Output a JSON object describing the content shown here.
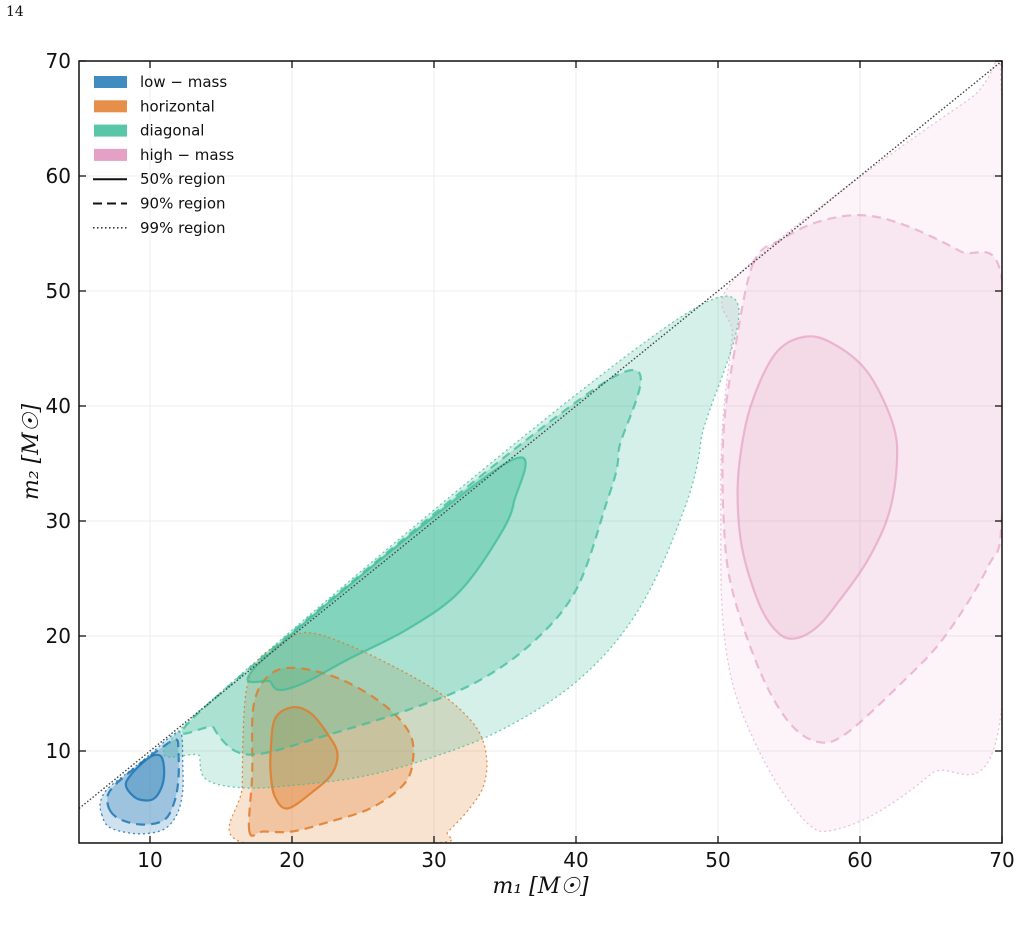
{
  "page_number": "14",
  "chart_data": {
    "type": "contour",
    "xlabel": "m₁ [M☉]",
    "ylabel": "m₂ [M☉]",
    "xlim": [
      5,
      70
    ],
    "ylim": [
      2,
      70
    ],
    "xticks": [
      10,
      20,
      30,
      40,
      50,
      60,
      70
    ],
    "yticks": [
      10,
      20,
      30,
      40,
      50,
      60,
      70
    ],
    "grid": true,
    "legend_position": "top-left",
    "diagonal_line": {
      "x": [
        5,
        70
      ],
      "y": [
        5,
        70
      ],
      "style": "dotted"
    },
    "series": [
      {
        "name": "low − mass",
        "color": "#1f77b4",
        "regions": {
          "99": [
            [
              6.6,
              4.5
            ],
            [
              7,
              3.5
            ],
            [
              8,
              3.0
            ],
            [
              9.5,
              2.8
            ],
            [
              11,
              3.2
            ],
            [
              11.9,
              4.5
            ],
            [
              12.3,
              6.5
            ],
            [
              12.3,
              9
            ],
            [
              12.2,
              11.5
            ],
            [
              11.5,
              11.3
            ],
            [
              10,
              9.7
            ],
            [
              8.5,
              8.2
            ],
            [
              7,
              6.7
            ],
            [
              6.5,
              5.5
            ]
          ],
          "90": [
            [
              7.2,
              4.8
            ],
            [
              8,
              4.0
            ],
            [
              9.5,
              3.6
            ],
            [
              11,
              4.0
            ],
            [
              11.7,
              5.5
            ],
            [
              12.0,
              7.5
            ],
            [
              12.0,
              10
            ],
            [
              11.8,
              11
            ],
            [
              10.5,
              10
            ],
            [
              9,
              8.6
            ],
            [
              7.5,
              7.0
            ],
            [
              7.0,
              6.0
            ]
          ],
          "50": [
            [
              8.5,
              6.5
            ],
            [
              9.2,
              5.8
            ],
            [
              10.2,
              5.8
            ],
            [
              10.8,
              6.8
            ],
            [
              11,
              8.2
            ],
            [
              10.8,
              9.5
            ],
            [
              10.2,
              9.6
            ],
            [
              9.5,
              9
            ],
            [
              8.7,
              8.0
            ],
            [
              8.3,
              7.2
            ]
          ]
        }
      },
      {
        "name": "horizontal",
        "color": "#e07b2a",
        "regions": {
          "99": [
            [
              16.6,
              2
            ],
            [
              16.5,
              7
            ],
            [
              16.7,
              14.5
            ],
            [
              17.5,
              17.7
            ],
            [
              19,
              19.2
            ],
            [
              21,
              20.3
            ],
            [
              24,
              19.2
            ],
            [
              28,
              16.8
            ],
            [
              31,
              14.5
            ],
            [
              33,
              12
            ],
            [
              33.7,
              9.5
            ],
            [
              33.5,
              7
            ],
            [
              32.5,
              5
            ],
            [
              31,
              3
            ],
            [
              30,
              2
            ]
          ],
          "90": [
            [
              17,
              3
            ],
            [
              17.2,
              8
            ],
            [
              17.3,
              14
            ],
            [
              18.5,
              16.7
            ],
            [
              20.5,
              17.2
            ],
            [
              23.5,
              16.2
            ],
            [
              26.5,
              14
            ],
            [
              28.3,
              11.5
            ],
            [
              28.5,
              9
            ],
            [
              27.8,
              7
            ],
            [
              25.5,
              5
            ],
            [
              22.5,
              3.8
            ],
            [
              20,
              3
            ],
            [
              18,
              3
            ]
          ],
          "50": [
            [
              18.5,
              10
            ],
            [
              18.8,
              12.8
            ],
            [
              20,
              13.8
            ],
            [
              21.3,
              13.3
            ],
            [
              22.5,
              11.5
            ],
            [
              23.2,
              9.8
            ],
            [
              22.8,
              8.0
            ],
            [
              21.5,
              6.5
            ],
            [
              19.7,
              5.0
            ],
            [
              18.8,
              6.0
            ],
            [
              18.5,
              8.0
            ]
          ]
        }
      },
      {
        "name": "diagonal",
        "color": "#3cbc98",
        "regions": {
          "99": [
            [
              13.6,
              13.6
            ],
            [
              13.5,
              9.5
            ],
            [
              14,
              7.5
            ],
            [
              16.5,
              6.8
            ],
            [
              20,
              7.0
            ],
            [
              25,
              7.8
            ],
            [
              30,
              9.5
            ],
            [
              35,
              12
            ],
            [
              40,
              16
            ],
            [
              44,
              21.5
            ],
            [
              47,
              29
            ],
            [
              48.8,
              37
            ],
            [
              48.8,
              48.8
            ]
          ],
          "90": [
            [
              14.3,
              14.3
            ],
            [
              14.5,
              12
            ],
            [
              16,
              10
            ],
            [
              18,
              9.8
            ],
            [
              22,
              11.2
            ],
            [
              28,
              13.5
            ],
            [
              33,
              16
            ],
            [
              37,
              19.5
            ],
            [
              40,
              24
            ],
            [
              42,
              31
            ],
            [
              43,
              36
            ],
            [
              42.2,
              42.2
            ]
          ],
          "50": [
            [
              18,
              18
            ],
            [
              18.5,
              16
            ],
            [
              19.2,
              15.3
            ],
            [
              21,
              16
            ],
            [
              24,
              18
            ],
            [
              28,
              20.5
            ],
            [
              31.5,
              23.5
            ],
            [
              34,
              27.5
            ],
            [
              35.6,
              31.5
            ],
            [
              34.9,
              34.9
            ]
          ]
        }
      },
      {
        "name": "high − mass",
        "color": "#e090bb",
        "regions": {
          "99": [
            [
              51.6,
              51.6
            ],
            [
              51,
              46
            ],
            [
              50.3,
              38
            ],
            [
              50.2,
              30
            ],
            [
              50.3,
              22
            ],
            [
              51,
              16
            ],
            [
              52.5,
              11
            ],
            [
              54.5,
              6.5
            ],
            [
              56.5,
              3.5
            ],
            [
              58,
              3.1
            ],
            [
              61,
              4.5
            ],
            [
              65,
              8
            ],
            [
              70,
              14
            ],
            [
              70,
              66.5
            ],
            [
              67.5,
              66.5
            ]
          ],
          "90": [
            [
              52.5,
              52.5
            ],
            [
              51.2,
              45
            ],
            [
              50.4,
              38
            ],
            [
              50.4,
              30
            ],
            [
              51,
              24
            ],
            [
              53,
              16.8
            ],
            [
              55,
              12.5
            ],
            [
              57,
              10.8
            ],
            [
              59,
              11.5
            ],
            [
              63,
              16
            ],
            [
              66,
              20
            ],
            [
              69,
              26
            ],
            [
              70,
              30.5
            ],
            [
              70,
              51
            ],
            [
              67,
              53.5
            ],
            [
              63,
              55.8
            ],
            [
              60,
              56.6
            ],
            [
              57,
              56
            ],
            [
              54.5,
              54.5
            ]
          ],
          "50": [
            [
              51.5,
              35
            ],
            [
              52.3,
              40
            ],
            [
              54,
              44.5
            ],
            [
              56,
              46
            ],
            [
              58,
              45.5
            ],
            [
              60.5,
              43
            ],
            [
              62.3,
              38.5
            ],
            [
              62.6,
              35
            ],
            [
              62,
              30.5
            ],
            [
              60.5,
              26.5
            ],
            [
              58.5,
              23
            ],
            [
              57,
              20.8
            ],
            [
              55.5,
              19.8
            ],
            [
              54.3,
              20.2
            ],
            [
              53,
              22.5
            ],
            [
              51.8,
              27
            ],
            [
              51.4,
              31
            ]
          ]
        }
      }
    ],
    "legend_lines": [
      {
        "label": "50% region",
        "style": "solid"
      },
      {
        "label": "90% region",
        "style": "dashed"
      },
      {
        "label": "99% region",
        "style": "dotted"
      }
    ]
  }
}
